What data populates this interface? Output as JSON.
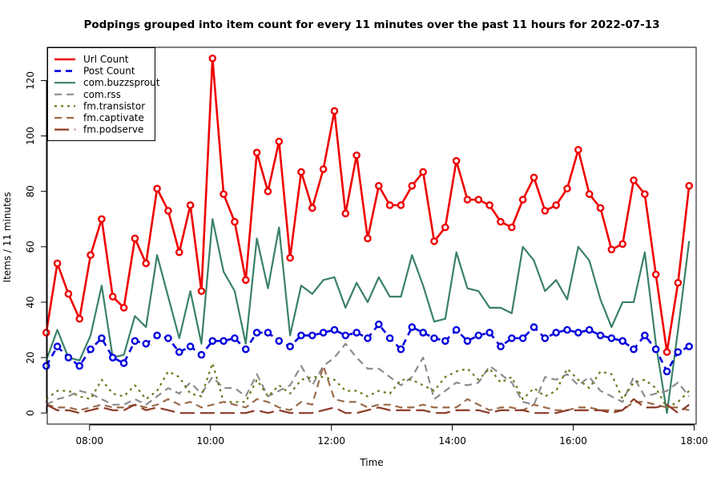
{
  "chart_data": {
    "type": "line",
    "title": "Podpings grouped into item count for every 11 minutes  over the past 11 hours for 2022-07-13",
    "xlabel": "Time",
    "ylabel": "Items / 11 minutes",
    "x_unit": "minutes since 00:00",
    "xlim": [
      438,
      1082
    ],
    "ylim": [
      -4,
      132
    ],
    "x_ticks": [
      {
        "value": 480,
        "label": "08:00"
      },
      {
        "value": 600,
        "label": "10:00"
      },
      {
        "value": 720,
        "label": "12:00"
      },
      {
        "value": 840,
        "label": "14:00"
      },
      {
        "value": 960,
        "label": "16:00"
      },
      {
        "value": 1080,
        "label": "18:00"
      }
    ],
    "y_ticks": [
      0,
      20,
      40,
      60,
      80,
      100,
      120
    ],
    "legend_position": "top-left",
    "x_start": 437,
    "x_step": 11,
    "series": [
      {
        "name": "Url Count",
        "color": "#ee0000",
        "dash": "",
        "width": 2.6,
        "markers": true,
        "values": [
          29,
          54,
          43,
          34,
          57,
          70,
          42,
          38,
          63,
          54,
          81,
          73,
          58,
          75,
          44,
          128,
          79,
          69,
          48,
          94,
          80,
          98,
          56,
          87,
          74,
          88,
          109,
          72,
          93,
          63,
          82,
          75,
          75,
          82,
          87,
          62,
          67,
          91,
          77,
          77,
          75,
          69,
          67,
          77,
          85,
          73,
          75,
          81,
          95,
          79,
          74,
          59,
          61,
          84,
          79,
          50,
          22,
          47,
          82
        ]
      },
      {
        "name": "Post Count",
        "color": "#0000dd",
        "dash": "8 6",
        "width": 2.6,
        "markers": true,
        "values": [
          17,
          24,
          20,
          17,
          23,
          27,
          20,
          18,
          26,
          25,
          28,
          27,
          22,
          24,
          21,
          26,
          26,
          27,
          23,
          29,
          29,
          26,
          24,
          28,
          28,
          29,
          30,
          28,
          29,
          27,
          32,
          27,
          23,
          31,
          29,
          27,
          26,
          30,
          26,
          28,
          29,
          24,
          27,
          27,
          31,
          27,
          29,
          30,
          29,
          30,
          28,
          27,
          26,
          23,
          28,
          23,
          15,
          22,
          24
        ]
      },
      {
        "name": "com.buzzsprout",
        "color": "#3a8168",
        "dash": "",
        "width": 2.2,
        "markers": false,
        "values": [
          19,
          30,
          20,
          19,
          28,
          46,
          20,
          21,
          35,
          31,
          57,
          42,
          27,
          44,
          25,
          70,
          51,
          44,
          25,
          63,
          45,
          67,
          28,
          46,
          43,
          48,
          49,
          38,
          47,
          40,
          49,
          42,
          42,
          57,
          46,
          33,
          34,
          58,
          45,
          44,
          38,
          38,
          36,
          60,
          55,
          44,
          48,
          41,
          60,
          55,
          41,
          31,
          40,
          40,
          58,
          25,
          0,
          30,
          62
        ]
      },
      {
        "name": "com.rss",
        "color": "#8c8c8c",
        "dash": "9 6",
        "width": 2.2,
        "markers": false,
        "values": [
          3,
          5,
          6,
          8,
          7,
          5,
          3,
          3,
          5,
          3,
          6,
          9,
          7,
          11,
          7,
          13,
          9,
          9,
          6,
          14,
          6,
          8,
          10,
          17,
          10,
          17,
          20,
          25,
          20,
          16,
          16,
          13,
          10,
          13,
          20,
          5,
          8,
          11,
          10,
          11,
          17,
          14,
          11,
          4,
          3,
          13,
          12,
          14,
          10,
          13,
          8,
          6,
          4,
          13,
          6,
          7,
          8,
          11,
          6
        ]
      },
      {
        "name": "fm.transistor",
        "color": "#6b7a1e",
        "dash": "3 5",
        "width": 2.2,
        "markers": false,
        "values": [
          5,
          8,
          8,
          6,
          5,
          12,
          7,
          6,
          10,
          5,
          8,
          15,
          13,
          7,
          6,
          18,
          4,
          4,
          4,
          12,
          6,
          10,
          7,
          12,
          13,
          13,
          12,
          8,
          8,
          6,
          8,
          7,
          12,
          12,
          10,
          8,
          13,
          15,
          16,
          12,
          16,
          11,
          13,
          5,
          9,
          6,
          8,
          16,
          12,
          9,
          15,
          14,
          5,
          11,
          12,
          9,
          2,
          4,
          8
        ]
      },
      {
        "name": "fm.captivate",
        "color": "#9b6b4b",
        "dash": "9 6",
        "width": 2.2,
        "markers": false,
        "values": [
          3,
          2,
          2,
          1,
          2,
          3,
          2,
          2,
          3,
          2,
          3,
          5,
          3,
          4,
          2,
          3,
          4,
          3,
          2,
          5,
          4,
          2,
          1,
          4,
          3,
          17,
          5,
          4,
          4,
          2,
          3,
          3,
          2,
          2,
          3,
          2,
          2,
          2,
          5,
          3,
          1,
          2,
          2,
          1,
          3,
          2,
          1,
          1,
          2,
          2,
          1,
          1,
          1,
          4,
          4,
          3,
          2,
          2,
          1
        ]
      },
      {
        "name": "fm.podserve",
        "color": "#8b3a26",
        "dash": "18 7",
        "width": 2.2,
        "markers": false,
        "values": [
          3,
          1,
          1,
          0,
          1,
          2,
          1,
          1,
          3,
          1,
          2,
          1,
          0,
          0,
          0,
          0,
          0,
          0,
          0,
          1,
          0,
          1,
          0,
          0,
          0,
          1,
          2,
          0,
          0,
          1,
          2,
          1,
          1,
          1,
          1,
          0,
          0,
          1,
          1,
          1,
          0,
          1,
          1,
          1,
          0,
          0,
          0,
          1,
          1,
          1,
          1,
          0,
          1,
          5,
          2,
          2,
          3,
          0,
          3
        ]
      }
    ]
  }
}
